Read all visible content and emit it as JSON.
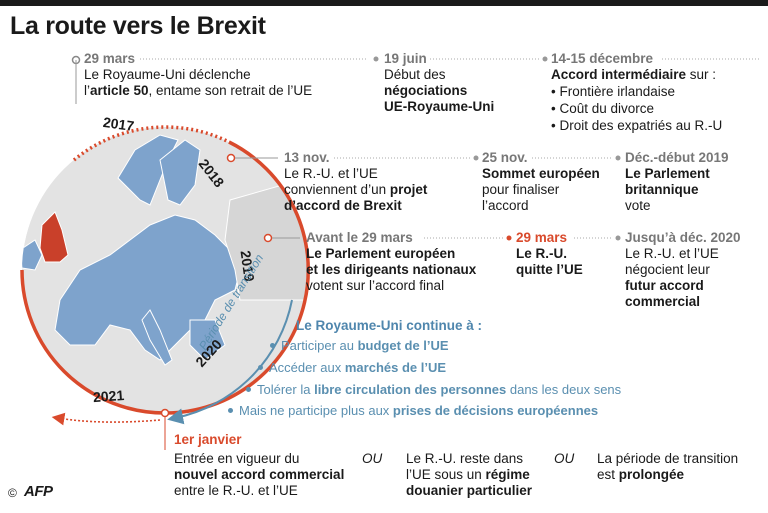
{
  "title": "La route vers le Brexit",
  "years": [
    "2017",
    "2018",
    "2019",
    "2020",
    "2021"
  ],
  "transition_label": "Période de transition",
  "row1": {
    "e1": {
      "date": "29 mars",
      "l1": "Le Royaume-Uni déclenche",
      "l2a": "l’",
      "l2b": "article 50",
      "l2c": ", entame son retrait de l’UE"
    },
    "e2": {
      "date": "19 juin",
      "l1": "Début des",
      "l2": "négociations",
      "l3": "UE-Royaume-Uni"
    },
    "e3": {
      "date": "14-15 décembre",
      "l1a": "Accord intermédiaire",
      "l1b": " sur :",
      "items": [
        "• Frontière irlandaise",
        "• Coût du divorce",
        "• Droit des expatriés au R.-U"
      ]
    }
  },
  "row2": {
    "e1": {
      "date": "13 nov.",
      "l1": "Le R.-U. et l’UE",
      "l2a": "conviennent d’un ",
      "l2b": "projet",
      "l3": "d’accord de Brexit"
    },
    "e2": {
      "date": "25 nov.",
      "l1": "Sommet européen",
      "l2": "pour finaliser",
      "l3": "l’accord"
    },
    "e3": {
      "date": "Déc.-début 2019",
      "l1": "Le Parlement",
      "l2": "britannique",
      "l3": "vote"
    }
  },
  "row3": {
    "e1": {
      "date": "Avant le 29 mars",
      "l1": "Le Parlement européen",
      "l2": "et les dirigeants nationaux",
      "l3": "votent sur l’accord final"
    },
    "e2": {
      "date": "29 mars",
      "l1": "Le R.-U.",
      "l2": "quitte l’UE"
    },
    "e3": {
      "date": "Jusqu’à déc. 2020",
      "l1": "Le R.-U. et l’UE",
      "l2": "négocient leur",
      "l3": "futur accord",
      "l4": "commercial"
    }
  },
  "transition": {
    "heading": "Le Royaume-Uni continue à :",
    "i1a": "Participer au ",
    "i1b": "budget de l’UE",
    "i2a": "Accéder aux ",
    "i2b": "marchés de l’UE",
    "i3a": "Tolérer la ",
    "i3b": "libre circulation des personnes",
    "i3c": " dans les deux sens",
    "i4a": "Mais ne participe plus aux ",
    "i4b": "prises de décisions européennes"
  },
  "final": {
    "date": "1er janvier",
    "o1": {
      "l1": "Entrée en vigueur du",
      "l2": "nouvel accord commercial",
      "l3": "entre le R.-U. et l’UE"
    },
    "ou": "OU",
    "o2": {
      "l1": "Le R.-U. reste dans",
      "l2a": "l’UE sous un ",
      "l2b": "régime",
      "l3": "douanier particulier"
    },
    "o3": {
      "l1": "La période de transition",
      "l2a": "est ",
      "l2b": "prolongée"
    }
  },
  "credit": "©",
  "logo": "AFP",
  "colors": {
    "accent_red": "#d94a2c",
    "transition_blue": "#5a8fb0",
    "eu_blue": "#7ea3cc",
    "uk_red": "#c9402a",
    "gray": "#777777"
  }
}
